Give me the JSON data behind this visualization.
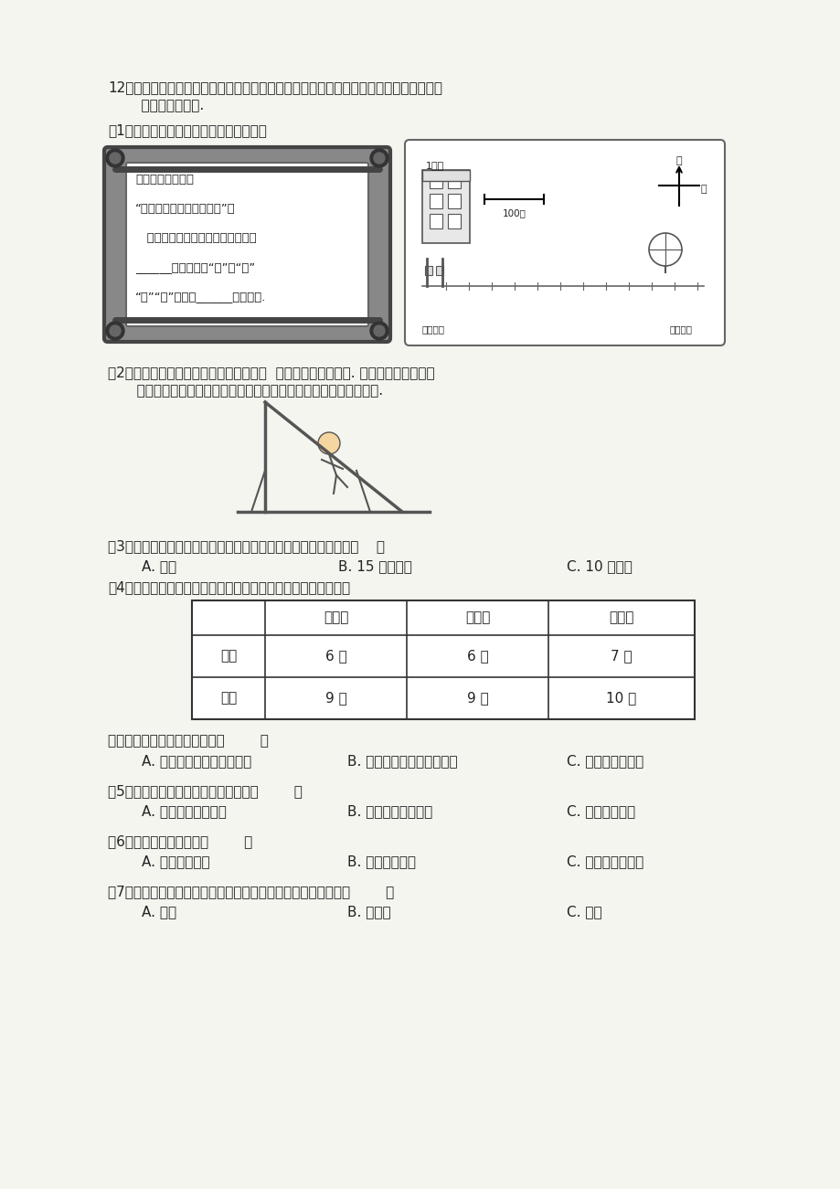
{
  "background_color": "#f5f5f0",
  "page_width": 9.2,
  "page_height": 13.01,
  "q12_intro": "12．为了迎接亚运会，小区新建了活动场地，孩子们画了新的小区地图（如下图所示），\n    并制作了通知书.",
  "q1_label": "（1）请将下面方框中的通知书填写完整。",
  "notice_text_lines": [
    "亲爱的各位居民：",
    "“迎接亚运会，全民共健身”。",
    "   如图所示，活动场地在小区大门的",
    "______方向（选填“东”、“南”",
    "“西”“北”）大约______米的地方."
  ],
  "q2_label": "（2）孩子们很喜欢活动场地里的滑滑梯，  最爱比一比谁滑得快. 下图中小鹿同学正在\n   滑滑梯。请以小鹿为运动点，用画一画的方式标注出她的运动轨迹.",
  "q3_label": "（3）小科同学想要知道小区里的新滑梯有多长，最合适的工具是（    ）",
  "q3_options": [
    "A. 秒表",
    "B. 15 厘米直尺",
    "C. 10 米软尺"
  ],
  "q4_label": "（4）小鹿和小科分别测量了自己玩滑梯时的时间，数据如下表：",
  "table_headers": [
    "",
    "第一次",
    "第二次",
    "第三次"
  ],
  "table_row1": [
    "小鹿",
    "6 秒",
    "6 秒",
    "7 秒"
  ],
  "table_row2": [
    "小科",
    "9 秒",
    "9 秒",
    "10 秒"
  ],
  "q4b_label": "上面表格中比较快慢的方法是（        ）",
  "q4b_options": [
    "A. 相同距离，比较运动时间",
    "B. 相同时间，比较运动距离",
    "C. 以上方法都不对"
  ],
  "q5_label": "（5）每人分别测量了三次，这是为了（        ）",
  "q5_options": [
    "A. 测量结果更加准确",
    "B. 使用秒表次数更多",
    "C. 实验时间更长"
  ],
  "q6_label": "（6）下列结论正确的是（        ）",
  "q6_options": [
    "A. 小鹿比小科快",
    "B. 小科比小鹿快",
    "C. 小鹿和小科一样"
  ],
  "q7_label": "（7）下列交通工具，和小科玩滑梯时运动的快慢比较接近的是（        ）",
  "q7_options": [
    "A. 动车",
    "B. 自行车",
    "C. 飞机"
  ],
  "text_color": "#222222",
  "line_color": "#333333"
}
